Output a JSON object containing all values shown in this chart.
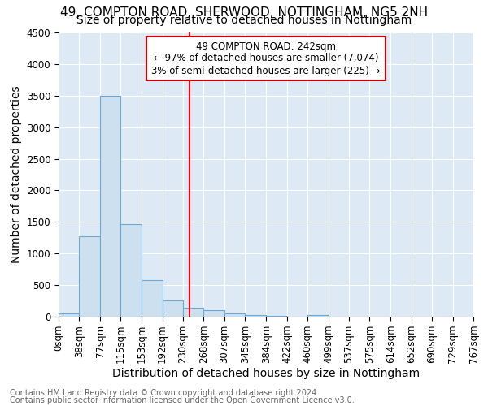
{
  "title1": "49, COMPTON ROAD, SHERWOOD, NOTTINGHAM, NG5 2NH",
  "title2": "Size of property relative to detached houses in Nottingham",
  "xlabel": "Distribution of detached houses by size in Nottingham",
  "ylabel": "Number of detached properties",
  "footnote1": "Contains HM Land Registry data © Crown copyright and database right 2024.",
  "footnote2": "Contains public sector information licensed under the Open Government Licence v3.0.",
  "annotation_title": "49 COMPTON ROAD: 242sqm",
  "annotation_line1": "← 97% of detached houses are smaller (7,074)",
  "annotation_line2": "3% of semi-detached houses are larger (225) →",
  "property_size": 242,
  "bar_edges": [
    0,
    38,
    77,
    115,
    153,
    192,
    230,
    268,
    307,
    345,
    384,
    422,
    460,
    499,
    537,
    575,
    614,
    652,
    690,
    729,
    767
  ],
  "bar_heights": [
    50,
    1270,
    3500,
    1470,
    575,
    255,
    140,
    100,
    50,
    20,
    10,
    0,
    30,
    0,
    0,
    0,
    0,
    0,
    0,
    0
  ],
  "bar_color": "#cde0f0",
  "bar_edge_color": "#6aaad4",
  "vline_x": 242,
  "vline_color": "#ff0000",
  "ylim": [
    0,
    4500
  ],
  "yticks": [
    0,
    500,
    1000,
    1500,
    2000,
    2500,
    3000,
    3500,
    4000,
    4500
  ],
  "plot_bg_color": "#ddeaf5",
  "fig_bg_color": "#ffffff",
  "annotation_box_color": "#ffffff",
  "annotation_box_edge_color": "#cc0000",
  "grid_color": "#ffffff",
  "title1_fontsize": 11,
  "title2_fontsize": 10,
  "axis_fontsize": 10,
  "tick_fontsize": 8.5,
  "footnote_fontsize": 7,
  "footnote_color": "#666666"
}
